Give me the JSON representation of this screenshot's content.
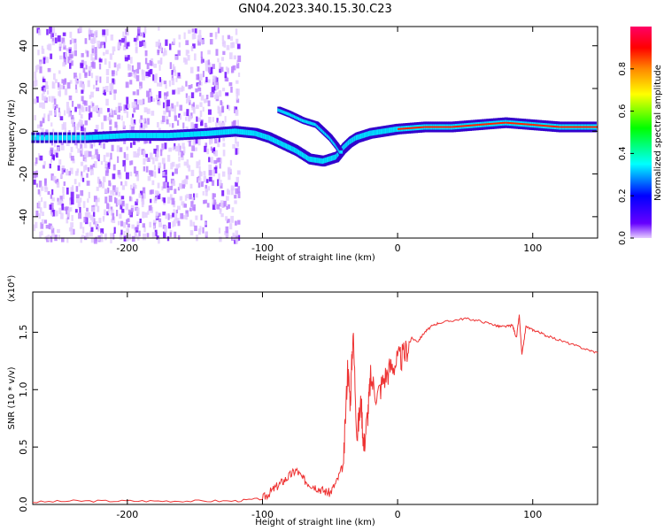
{
  "page_title": "GN04.2023.340.15.30.C23",
  "chart_data": [
    {
      "type": "heatmap",
      "title": "GN04.2023.340.15.30.C23",
      "xlabel": "Height of straight line (km)",
      "ylabel": "Frequency (Hz)",
      "xlim": [
        -270,
        148
      ],
      "ylim": [
        -50,
        49
      ],
      "xticks": [
        -200,
        -100,
        0,
        100
      ],
      "yticks": [
        -40,
        -20,
        0,
        20,
        40
      ],
      "xtick_labels": [
        "-200",
        "-100",
        "0",
        "100"
      ],
      "ytick_labels": [
        "-40",
        "-20",
        "0",
        "20",
        "40"
      ],
      "colorbar": {
        "label": "Normalized spectral amplitude",
        "range": [
          0,
          1
        ],
        "ticks": [
          0.0,
          0.2,
          0.4,
          0.6,
          0.8
        ],
        "tick_labels": [
          "0.0",
          "0.2",
          "0.4",
          "0.6",
          "0.8"
        ],
        "colors": [
          "#e6ccff",
          "#6600ff",
          "#0000ff",
          "#00ffff",
          "#00ff00",
          "#ffff00",
          "#ff8800",
          "#ff0000",
          "#ff0066"
        ]
      },
      "trace": {
        "x": [
          -270,
          -230,
          -200,
          -170,
          -140,
          -120,
          -105,
          -95,
          -85,
          -75,
          -65,
          -55,
          -45,
          -40,
          -35,
          -30,
          -20,
          -10,
          0,
          20,
          40,
          60,
          80,
          100,
          120,
          148
        ],
        "y": [
          -3,
          -3,
          -2,
          -2,
          -1,
          0,
          -1,
          -3,
          -6,
          -9,
          -13,
          -14,
          -12,
          -8,
          -5,
          -3,
          -1,
          0,
          1,
          2,
          2,
          3,
          4,
          3,
          2,
          2
        ]
      },
      "branch": {
        "x": [
          -88,
          -80,
          -70,
          -60,
          -55,
          -50,
          -45,
          -42
        ],
        "y": [
          10,
          8,
          5,
          3,
          0,
          -3,
          -7,
          -10
        ]
      },
      "colors": {
        "noise": "#8a2be2",
        "dense": "#3300cc"
      }
    },
    {
      "type": "line",
      "title": "",
      "xlabel": "Height of straight line (km)",
      "ylabel": "SNR (10 * v/v)",
      "multiplier": "(x10⁴)",
      "xlim": [
        -270,
        148
      ],
      "ylim": [
        0,
        1.85
      ],
      "xticks": [
        -200,
        -100,
        0,
        100
      ],
      "yticks": [
        0.0,
        0.5,
        1.0,
        1.5
      ],
      "xtick_labels": [
        "-200",
        "-100",
        "0",
        "100"
      ],
      "ytick_labels": [
        "0.0",
        "0.5",
        "1.0",
        "1.5"
      ],
      "series": [
        {
          "color": "#ee3333",
          "x": [
            -270,
            -240,
            -210,
            -180,
            -150,
            -120,
            -100,
            -95,
            -90,
            -85,
            -80,
            -75,
            -70,
            -65,
            -60,
            -55,
            -50,
            -45,
            -40,
            -37,
            -35,
            -33,
            -30,
            -27,
            -25,
            -22,
            -20,
            -15,
            -10,
            -5,
            0,
            5,
            10,
            15,
            20,
            25,
            30,
            40,
            50,
            60,
            70,
            75,
            80,
            85,
            88,
            90,
            92,
            95,
            100,
            105,
            110,
            120,
            130,
            140,
            148
          ],
          "y": [
            0.02,
            0.03,
            0.03,
            0.03,
            0.03,
            0.03,
            0.05,
            0.1,
            0.15,
            0.2,
            0.25,
            0.3,
            0.22,
            0.18,
            0.15,
            0.12,
            0.1,
            0.2,
            0.35,
            1.2,
            0.9,
            1.5,
            0.6,
            0.9,
            0.5,
            0.8,
            1.1,
            0.95,
            1.1,
            1.2,
            1.25,
            1.3,
            1.45,
            1.42,
            1.5,
            1.55,
            1.58,
            1.6,
            1.62,
            1.6,
            1.57,
            1.55,
            1.55,
            1.56,
            1.45,
            1.65,
            1.3,
            1.55,
            1.52,
            1.5,
            1.47,
            1.43,
            1.39,
            1.35,
            1.32
          ]
        }
      ]
    }
  ]
}
